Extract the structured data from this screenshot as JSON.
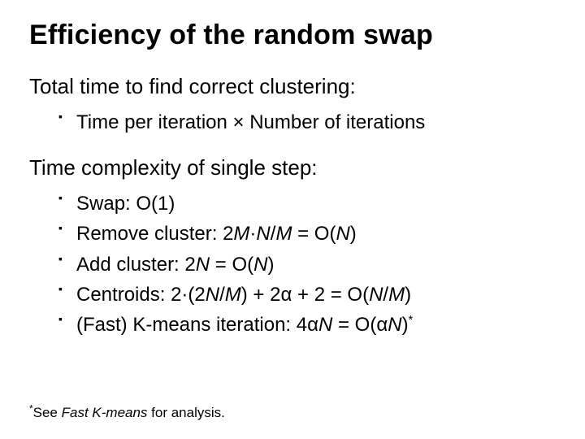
{
  "title": "Efficiency of the random swap",
  "section1": {
    "header": "Total time to find correct clustering:",
    "items": [
      {
        "pre": "Time per iteration ",
        "op": "×",
        "post": " Number of iterations"
      }
    ]
  },
  "section2": {
    "header": "Time complexity of single step:",
    "items": [
      {
        "label": "Swap: ",
        "expr_plain": "O(1)"
      },
      {
        "label": "Remove cluster: ",
        "lead": "2",
        "var1": "M",
        "mid1": "·",
        "var2": "N",
        "mid2": "/",
        "var3": "M",
        "eq": " = O(",
        "varR": "N",
        "close": ")"
      },
      {
        "label": "Add cluster: ",
        "lead": "2",
        "var1": "N",
        "eq": " = O(",
        "varR": "N",
        "close": ")"
      },
      {
        "label": "Centroids: ",
        "lead": "2·(2",
        "var1": "N",
        "mid1": "/",
        "var2": "M",
        "mid2": ") + 2",
        "alpha1": "α",
        "mid3": " + 2 = O(",
        "var3": "N",
        "mid4": "/",
        "var4": "M",
        "close": ")"
      },
      {
        "label": "(Fast) K-means iteration: ",
        "lead": "4",
        "alpha1": "α",
        "var1": "N",
        "eq": " = O(",
        "alpha2": "α",
        "varR": "N",
        "close": ")",
        "sup": "*"
      }
    ]
  },
  "footnote": {
    "star": "*",
    "pre": "See ",
    "ital": "Fast K-means",
    "post": " for analysis."
  },
  "style": {
    "background": "#ffffff",
    "text_color": "#000000",
    "title_fontsize": 34,
    "header_fontsize": 26,
    "bullet_fontsize": 24,
    "footnote_fontsize": 17
  }
}
